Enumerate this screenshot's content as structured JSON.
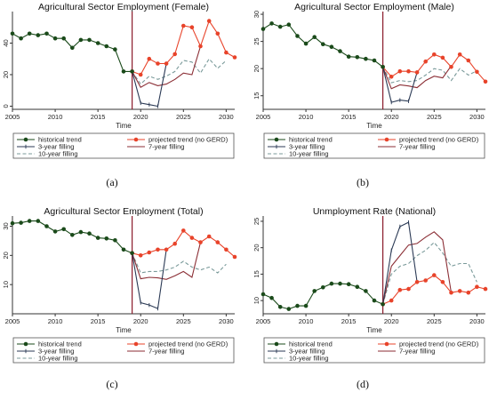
{
  "figure": {
    "panel_labels": [
      "(a)",
      "(b)",
      "(c)",
      "(d)"
    ]
  },
  "colors": {
    "historical": "#1a4a1a",
    "projected": "#e8432a",
    "fill3": "#2b3a55",
    "fill7": "#8b2e35",
    "fill10": "#7a9a9a",
    "divider": "#8b1a2a",
    "axis": "#333333"
  },
  "legend": {
    "historical": "historical trend",
    "projected": "projected trend (no GERD)",
    "fill3": "3-year filling",
    "fill7": "7-year filling",
    "fill10": "10-year filling"
  },
  "chart_data": [
    {
      "type": "line",
      "title": "Agricultural Sector Employment (Female)",
      "xlabel": "Time",
      "ylabel": "",
      "xlim": [
        2005,
        2031
      ],
      "ylim": [
        -2,
        60
      ],
      "xticks": [
        2005,
        2010,
        2015,
        2020,
        2025,
        2030
      ],
      "yticks": [
        0,
        20,
        40
      ],
      "divider_x": 2019,
      "series": [
        {
          "name": "historical trend",
          "key": "historical",
          "x": [
            2005,
            2006,
            2007,
            2008,
            2009,
            2010,
            2011,
            2012,
            2013,
            2014,
            2015,
            2016,
            2017,
            2018,
            2019
          ],
          "y": [
            46,
            43,
            46,
            45,
            46,
            43,
            43,
            37,
            42,
            42,
            40,
            38,
            36,
            22,
            22
          ]
        },
        {
          "name": "projected trend (no GERD)",
          "key": "projected",
          "x": [
            2019,
            2020,
            2021,
            2022,
            2023,
            2024,
            2025,
            2026,
            2027,
            2028,
            2029,
            2030,
            2031
          ],
          "y": [
            22,
            20,
            30,
            27,
            27,
            33,
            51,
            50,
            38,
            54,
            46,
            34,
            31
          ]
        },
        {
          "name": "3-year filling",
          "key": "fill3",
          "x": [
            2019,
            2020,
            2021,
            2022,
            2023
          ],
          "y": [
            22,
            2,
            1,
            0,
            27
          ]
        },
        {
          "name": "7-year filling",
          "key": "fill7",
          "x": [
            2019,
            2020,
            2021,
            2022,
            2023,
            2024,
            2025,
            2026,
            2027
          ],
          "y": [
            22,
            12,
            15,
            13,
            14,
            17,
            21,
            20,
            38
          ]
        },
        {
          "name": "10-year filling",
          "key": "fill10",
          "x": [
            2019,
            2020,
            2021,
            2022,
            2023,
            2024,
            2025,
            2026,
            2027,
            2028,
            2029,
            2030
          ],
          "y": [
            22,
            14,
            19,
            17,
            19,
            22,
            29,
            28,
            21,
            30,
            24,
            29
          ]
        }
      ]
    },
    {
      "type": "line",
      "title": "Agricultural Sector Employment (Male)",
      "xlabel": "Time",
      "ylabel": "",
      "xlim": [
        2005,
        2031
      ],
      "ylim": [
        12.5,
        30.5
      ],
      "xticks": [
        2005,
        2010,
        2015,
        2020,
        2025,
        2030
      ],
      "yticks": [
        15,
        20,
        25,
        30
      ],
      "divider_x": 2019,
      "series": [
        {
          "name": "historical trend",
          "key": "historical",
          "x": [
            2005,
            2006,
            2007,
            2008,
            2009,
            2010,
            2011,
            2012,
            2013,
            2014,
            2015,
            2016,
            2017,
            2018,
            2019
          ],
          "y": [
            27.3,
            28.3,
            27.7,
            28.1,
            26,
            24.6,
            25.8,
            24.5,
            24,
            23.2,
            22.2,
            22.1,
            21.8,
            21.5,
            20.3
          ]
        },
        {
          "name": "projected trend (no GERD)",
          "key": "projected",
          "x": [
            2019,
            2020,
            2021,
            2022,
            2023,
            2024,
            2025,
            2026,
            2027,
            2028,
            2029,
            2030,
            2031
          ],
          "y": [
            20.3,
            18.5,
            19.5,
            19.5,
            19.3,
            21.3,
            22.6,
            22,
            20.3,
            22.6,
            21.5,
            19.4,
            17.6
          ]
        },
        {
          "name": "3-year filling",
          "key": "fill3",
          "x": [
            2019,
            2020,
            2021,
            2022,
            2023
          ],
          "y": [
            20.3,
            13.8,
            14.2,
            14,
            19.3
          ]
        },
        {
          "name": "7-year filling",
          "key": "fill7",
          "x": [
            2019,
            2020,
            2021,
            2022,
            2023,
            2024,
            2025,
            2026,
            2027
          ],
          "y": [
            20.3,
            16.3,
            17,
            16.8,
            16.5,
            17.8,
            18.6,
            18.3,
            20.5
          ]
        },
        {
          "name": "10-year filling",
          "key": "fill10",
          "x": [
            2019,
            2020,
            2021,
            2022,
            2023,
            2024,
            2025,
            2026,
            2027,
            2028,
            2029,
            2030
          ],
          "y": [
            20.3,
            17.4,
            17.8,
            17.6,
            17.8,
            18.8,
            20,
            19.7,
            17.8,
            20,
            18.8,
            19.6
          ]
        }
      ]
    },
    {
      "type": "line",
      "title": "Agricultural Sector Employment (Total)",
      "xlabel": "Time",
      "ylabel": "",
      "xlim": [
        2005,
        2031
      ],
      "ylim": [
        0,
        33.5
      ],
      "xticks": [
        2005,
        2010,
        2015,
        2020,
        2025,
        2030
      ],
      "yticks": [
        10,
        20,
        30
      ],
      "divider_x": 2019,
      "series": [
        {
          "name": "historical trend",
          "key": "historical",
          "x": [
            2005,
            2006,
            2007,
            2008,
            2009,
            2010,
            2011,
            2012,
            2013,
            2014,
            2015,
            2016,
            2017,
            2018,
            2019
          ],
          "y": [
            31,
            31.2,
            31.8,
            31.8,
            30,
            28.2,
            29,
            27,
            28,
            27.5,
            26,
            25.8,
            25.2,
            22,
            20.8
          ]
        },
        {
          "name": "projected trend (no GERD)",
          "key": "projected",
          "x": [
            2019,
            2020,
            2021,
            2022,
            2023,
            2024,
            2025,
            2026,
            2027,
            2028,
            2029,
            2030,
            2031
          ],
          "y": [
            20.8,
            20,
            21,
            22,
            22,
            24,
            28.5,
            26,
            24.5,
            26.5,
            24.5,
            22,
            19.5
          ]
        },
        {
          "name": "3-year filling",
          "key": "fill3",
          "x": [
            2019,
            2020,
            2021,
            2022,
            2023
          ],
          "y": [
            20.8,
            3.8,
            3,
            1.8,
            22
          ]
        },
        {
          "name": "7-year filling",
          "key": "fill7",
          "x": [
            2019,
            2020,
            2021,
            2022,
            2023,
            2024,
            2025,
            2026,
            2027
          ],
          "y": [
            20.8,
            12,
            12.5,
            12.3,
            11.8,
            13,
            14.5,
            12.5,
            24.5
          ]
        },
        {
          "name": "10-year filling",
          "key": "fill10",
          "x": [
            2019,
            2020,
            2021,
            2022,
            2023,
            2024,
            2025,
            2026,
            2027,
            2028,
            2029,
            2030
          ],
          "y": [
            20.8,
            14,
            14.5,
            14.5,
            15,
            16,
            18,
            16,
            15,
            16,
            14,
            17
          ]
        }
      ]
    },
    {
      "type": "line",
      "title": "Unmployment Rate (National)",
      "xlabel": "Time",
      "ylabel": "",
      "xlim": [
        2005,
        2031
      ],
      "ylim": [
        7.5,
        26
      ],
      "xticks": [
        2005,
        2010,
        2015,
        2020,
        2025,
        2030
      ],
      "yticks": [
        10,
        15,
        20,
        25
      ],
      "divider_x": 2019,
      "series": [
        {
          "name": "historical trend",
          "key": "historical",
          "x": [
            2005,
            2006,
            2007,
            2008,
            2009,
            2010,
            2011,
            2012,
            2013,
            2014,
            2015,
            2016,
            2017,
            2018,
            2019
          ],
          "y": [
            11.2,
            10.5,
            8.8,
            8.4,
            9,
            9,
            11.8,
            12.5,
            13.2,
            13.2,
            13.1,
            12.6,
            11.8,
            10,
            9.3
          ]
        },
        {
          "name": "projected trend (no GERD)",
          "key": "projected",
          "x": [
            2019,
            2020,
            2021,
            2022,
            2023,
            2024,
            2025,
            2026,
            2027,
            2028,
            2029,
            2030,
            2031
          ],
          "y": [
            9.3,
            10,
            12,
            12.2,
            13.5,
            13.8,
            14.8,
            13.5,
            11.5,
            11.8,
            11.5,
            12.6,
            12.2
          ]
        },
        {
          "name": "3-year filling",
          "key": "fill3",
          "x": [
            2019,
            2020,
            2021,
            2022,
            2023
          ],
          "y": [
            9.3,
            19.5,
            24,
            24.8,
            13.5
          ]
        },
        {
          "name": "7-year filling",
          "key": "fill7",
          "x": [
            2019,
            2020,
            2021,
            2022,
            2023,
            2024,
            2025,
            2026,
            2027
          ],
          "y": [
            9.3,
            16.5,
            18.5,
            20.5,
            20.8,
            22,
            23,
            21.5,
            11.5
          ]
        },
        {
          "name": "10-year filling",
          "key": "fill10",
          "x": [
            2019,
            2020,
            2021,
            2022,
            2023,
            2024,
            2025,
            2026,
            2027,
            2028,
            2029,
            2030
          ],
          "y": [
            9.3,
            15,
            16.5,
            17,
            18.5,
            19.5,
            21,
            19,
            16.5,
            17,
            17,
            13.5
          ]
        }
      ]
    }
  ]
}
